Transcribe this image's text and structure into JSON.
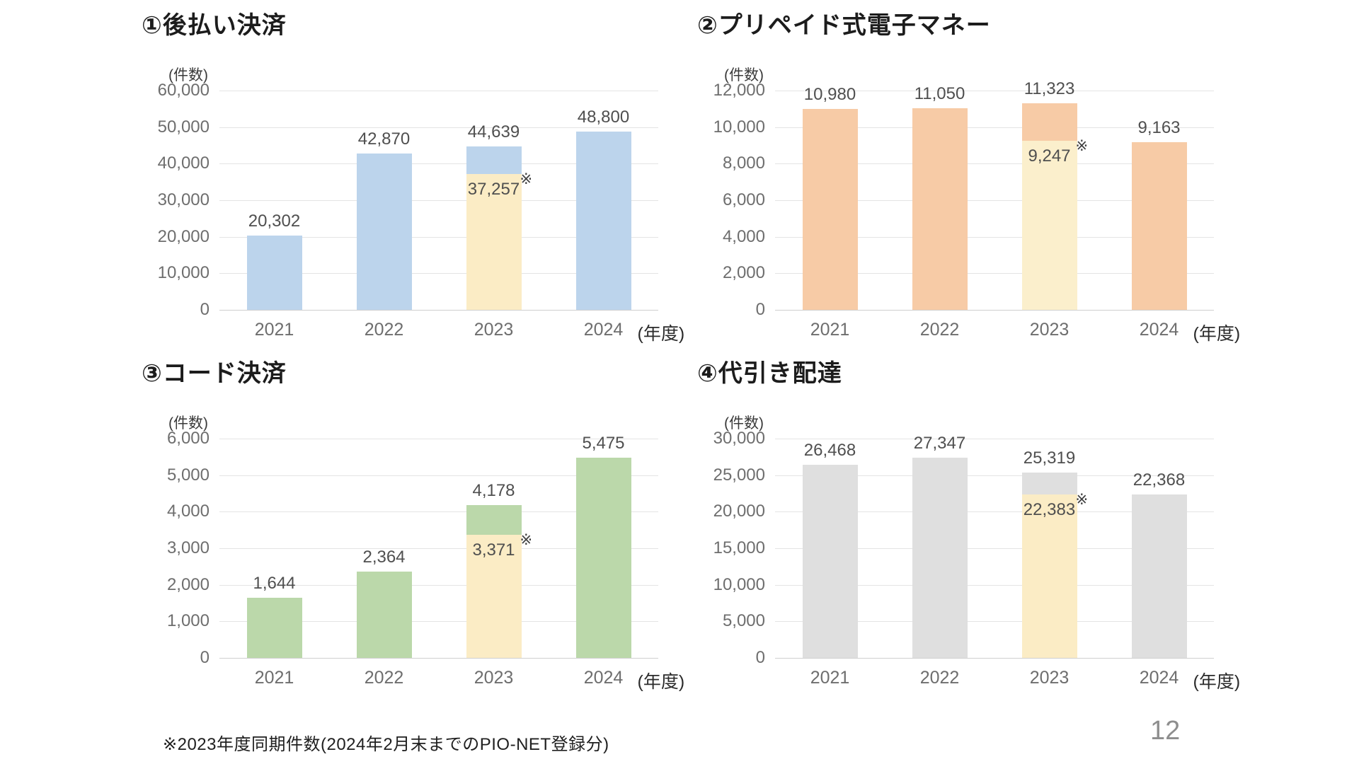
{
  "slide": {
    "footnote": "※2023年度同期件数(2024年2月末までのPIO-NET登録分)",
    "page_number": "12"
  },
  "chart_data": [
    {
      "type": "bar",
      "title": "①後払い決済",
      "ylabel": "(件数)",
      "x_suffix": "(年度)",
      "categories": [
        "2021",
        "2022",
        "2023",
        "2024"
      ],
      "values": [
        20302,
        42870,
        44639,
        48800
      ],
      "value_labels": [
        "20,302",
        "42,870",
        "44,639",
        "48,800"
      ],
      "overlay": {
        "category_index": 2,
        "value": 37257,
        "label": "37,257",
        "marker": "※"
      },
      "ylim": [
        0,
        60000
      ],
      "ytick_step": 10000,
      "ytick_labels": [
        "0",
        "10,000",
        "20,000",
        "30,000",
        "40,000",
        "50,000",
        "60,000"
      ],
      "grid": true,
      "legend": "none",
      "bar_color": "#BCD4EC",
      "overlay_color": "#FBECC5"
    },
    {
      "type": "bar",
      "title": "②プリペイド式電子マネー",
      "ylabel": "(件数)",
      "x_suffix": "(年度)",
      "categories": [
        "2021",
        "2022",
        "2023",
        "2024"
      ],
      "values": [
        10980,
        11050,
        11323,
        9163
      ],
      "value_labels": [
        "10,980",
        "11,050",
        "11,323",
        "9,163"
      ],
      "overlay": {
        "category_index": 2,
        "value": 9247,
        "label": "9,247",
        "marker": "※"
      },
      "ylim": [
        0,
        12000
      ],
      "ytick_step": 2000,
      "ytick_labels": [
        "0",
        "2,000",
        "4,000",
        "6,000",
        "8,000",
        "10,000",
        "12,000"
      ],
      "grid": true,
      "legend": "none",
      "bar_color": "#F7CBA6",
      "overlay_color": "#FBEFCC"
    },
    {
      "type": "bar",
      "title": "③コード決済",
      "ylabel": "(件数)",
      "x_suffix": "(年度)",
      "categories": [
        "2021",
        "2022",
        "2023",
        "2024"
      ],
      "values": [
        1644,
        2364,
        4178,
        5475
      ],
      "value_labels": [
        "1,644",
        "2,364",
        "4,178",
        "5,475"
      ],
      "overlay": {
        "category_index": 2,
        "value": 3371,
        "label": "3,371",
        "marker": "※"
      },
      "ylim": [
        0,
        6000
      ],
      "ytick_step": 1000,
      "ytick_labels": [
        "0",
        "1,000",
        "2,000",
        "3,000",
        "4,000",
        "5,000",
        "6,000"
      ],
      "grid": true,
      "legend": "none",
      "bar_color": "#BBD8AA",
      "overlay_color": "#FBECC5"
    },
    {
      "type": "bar",
      "title": "④代引き配達",
      "ylabel": "(件数)",
      "x_suffix": "(年度)",
      "categories": [
        "2021",
        "2022",
        "2023",
        "2024"
      ],
      "values": [
        26468,
        27347,
        25319,
        22368
      ],
      "value_labels": [
        "26,468",
        "27,347",
        "25,319",
        "22,368"
      ],
      "overlay": {
        "category_index": 2,
        "value": 22383,
        "label": "22,383",
        "marker": "※"
      },
      "ylim": [
        0,
        30000
      ],
      "ytick_step": 5000,
      "ytick_labels": [
        "0",
        "5,000",
        "10,000",
        "15,000",
        "20,000",
        "25,000",
        "30,000"
      ],
      "grid": true,
      "legend": "none",
      "bar_color": "#DFDFDF",
      "overlay_color": "#FBECC5"
    }
  ]
}
